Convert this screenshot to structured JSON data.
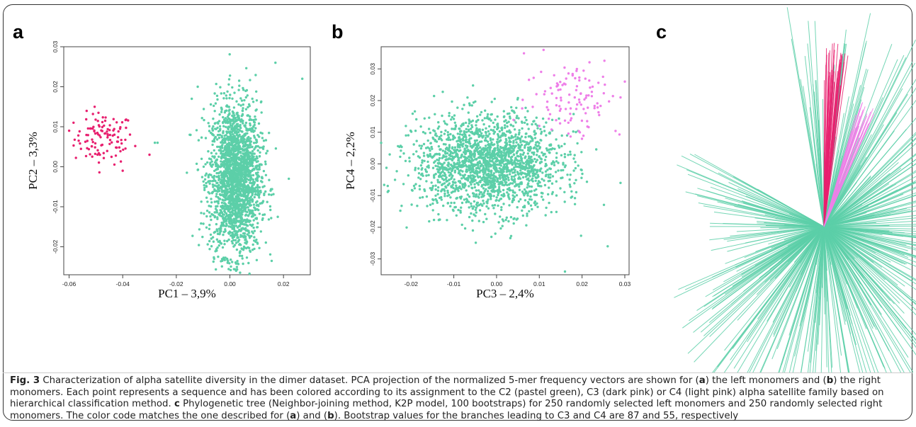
{
  "figure": {
    "panels": [
      {
        "letter": "a",
        "xlabel": "PC1 – 3,9%",
        "ylabel": "PC2 – 3,3%"
      },
      {
        "letter": "b",
        "xlabel": "PC3 – 2,4%",
        "ylabel": "PC4 – 2,2%"
      },
      {
        "letter": "c"
      }
    ],
    "colors": {
      "C2": "#5ccfa8",
      "C3": "#e8206f",
      "C4": "#ee7fe8"
    }
  },
  "caption": {
    "label": "Fig. 3",
    "t1": " Characterization of alpha satellite diversity in the dimer dataset. PCA projection of the normalized 5-mer frequency vectors are shown for (",
    "ref_a1": "a",
    "t2": ") the left monomers and (",
    "ref_b1": "b",
    "t3": ") the right monomers. Each point represents a sequence and has been colored according to its assignment to the C2 (pastel green), C3 (dark pink) or C4 (light pink) alpha satellite family based on hierarchical classification method. ",
    "ref_c": "c",
    "t4": " Phylogenetic tree (Neighbor-joining method, K2P model, 100 bootstraps) for 250 randomly selected left monomers and 250 randomly selected right monomers. The color code matches the one described for (",
    "ref_a2": "a",
    "t5": ") and (",
    "ref_b2": "b",
    "t6": "). Bootstrap values for the branches leading to C3 and C4 are 87 and 55, respectively"
  },
  "chart_data": [
    {
      "type": "scatter",
      "panel": "a",
      "xlabel": "PC1 – 3,9%",
      "ylabel": "PC2 – 3,3%",
      "xlim": [
        -0.062,
        0.03
      ],
      "ylim": [
        -0.027,
        0.03
      ],
      "xticks": [
        -0.06,
        -0.04,
        -0.02,
        0.0,
        0.02
      ],
      "xtick_labels": [
        "-0.06",
        "-0.04",
        "-0.02",
        "0.00",
        "0.02"
      ],
      "yticks": [
        -0.02,
        -0.01,
        0.0,
        0.01,
        0.02,
        0.03
      ],
      "ytick_labels": [
        "-0.02",
        "-0.01",
        "0.00",
        "0.01",
        "0.02",
        "0.03"
      ],
      "clusters": [
        {
          "group": "C3",
          "n": 110,
          "cx": -0.047,
          "cy": 0.007,
          "sx": 0.0055,
          "sy": 0.0032
        },
        {
          "group": "C2",
          "n": 2200,
          "cx": 0.002,
          "cy": -0.003,
          "sx": 0.0048,
          "sy": 0.0095
        }
      ],
      "points": [
        {
          "group": "C2",
          "x": 0.027,
          "y": 0.022
        },
        {
          "group": "C2",
          "x": 0.017,
          "y": 0.026
        },
        {
          "group": "C2",
          "x": -0.012,
          "y": 0.02
        },
        {
          "group": "C2",
          "x": -0.028,
          "y": 0.006
        },
        {
          "group": "C2",
          "x": -0.027,
          "y": 0.006
        },
        {
          "group": "C2",
          "x": 0.022,
          "y": -0.003
        },
        {
          "group": "C2",
          "x": -0.015,
          "y": 0.008
        },
        {
          "group": "C3",
          "x": -0.06,
          "y": 0.009
        },
        {
          "group": "C3",
          "x": -0.03,
          "y": 0.003
        },
        {
          "group": "C3",
          "x": -0.04,
          "y": -0.001
        }
      ]
    },
    {
      "type": "scatter",
      "panel": "b",
      "xlabel": "PC3 – 2,4%",
      "ylabel": "PC4 – 2,2%",
      "xlim": [
        -0.027,
        0.031
      ],
      "ylim": [
        -0.035,
        0.037
      ],
      "xticks": [
        -0.02,
        -0.01,
        0.0,
        0.01,
        0.02,
        0.03
      ],
      "xtick_labels": [
        "-0.02",
        "-0.01",
        "0.00",
        "0.01",
        "0.02",
        "0.03"
      ],
      "yticks": [
        -0.03,
        -0.02,
        -0.01,
        0.0,
        0.01,
        0.02,
        0.03
      ],
      "ytick_labels": [
        "-0.03",
        "-0.02",
        "-0.01",
        "0.00",
        "0.01",
        "0.02",
        "0.03"
      ],
      "clusters": [
        {
          "group": "C2",
          "n": 2000,
          "cx": -0.002,
          "cy": 0.0,
          "sx": 0.0085,
          "sy": 0.0075
        },
        {
          "group": "C4",
          "n": 110,
          "cx": 0.018,
          "cy": 0.021,
          "sx": 0.0055,
          "sy": 0.0065
        }
      ],
      "points": [
        {
          "group": "C2",
          "x": 0.016,
          "y": -0.034
        },
        {
          "group": "C2",
          "x": -0.025,
          "y": 0.003
        },
        {
          "group": "C2",
          "x": 0.026,
          "y": -0.026
        },
        {
          "group": "C2",
          "x": 0.029,
          "y": -0.006
        },
        {
          "group": "C4",
          "x": 0.011,
          "y": 0.036
        },
        {
          "group": "C4",
          "x": 0.03,
          "y": 0.026
        },
        {
          "group": "C4",
          "x": 0.029,
          "y": 0.021
        },
        {
          "group": "C4",
          "x": 0.01,
          "y": 0.012
        }
      ]
    },
    {
      "type": "tree",
      "panel": "c",
      "layout": "unrooted radial",
      "leaves": 500,
      "clades": [
        {
          "group": "C2",
          "share": 0.86
        },
        {
          "group": "C3",
          "share": 0.08
        },
        {
          "group": "C4",
          "share": 0.06
        }
      ]
    }
  ]
}
